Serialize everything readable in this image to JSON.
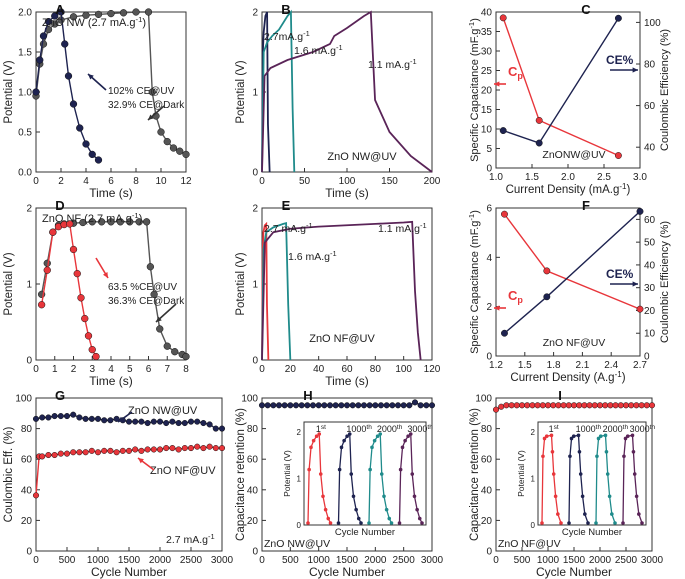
{
  "colors": {
    "red": "#e8363b",
    "navy": "#1e2350",
    "grey": "#555555",
    "teal": "#1f8b8b",
    "purple": "#5a2458"
  },
  "chart_data": [
    {
      "id": "A",
      "type": "line",
      "xlabel": "Time (s)",
      "ylabel": "Potential (V)",
      "xlim": [
        0,
        12
      ],
      "ylim": [
        0,
        2
      ],
      "xticks": [
        "0",
        "2",
        "4",
        "6",
        "8",
        "10",
        "12"
      ],
      "yticks": [
        "0.0",
        "0.5",
        "1.0",
        "1.5",
        "2.0"
      ],
      "label": "ZnO NW (2.7 mA.g",
      "label_sup": "-1",
      "label_end": ")",
      "annotations": [
        "102% CE@UV",
        "32.9% CE@Dark"
      ],
      "series": [
        {
          "name": "Dark",
          "color": "#555555",
          "x": [
            0,
            0.3,
            0.6,
            1,
            1.5,
            2,
            3,
            4,
            5,
            6,
            7,
            8,
            9,
            9.3,
            9.6,
            10,
            10.5,
            11,
            11.5,
            12
          ],
          "y": [
            0.95,
            1.35,
            1.6,
            1.78,
            1.85,
            1.9,
            1.94,
            1.96,
            1.97,
            1.98,
            1.99,
            2.0,
            2.0,
            1.0,
            0.7,
            0.5,
            0.38,
            0.3,
            0.26,
            0.22
          ]
        },
        {
          "name": "UV",
          "color": "#1e2350",
          "x": [
            0,
            0.3,
            0.6,
            1,
            1.5,
            2,
            2.3,
            2.6,
            3,
            3.5,
            4,
            4.5,
            5
          ],
          "y": [
            1.0,
            1.4,
            1.7,
            1.88,
            1.95,
            2.0,
            1.6,
            1.2,
            0.85,
            0.55,
            0.35,
            0.22,
            0.15
          ]
        }
      ]
    },
    {
      "id": "B",
      "type": "line",
      "xlabel": "Time (s)",
      "ylabel": "Potential (V)",
      "xlim": [
        0,
        200
      ],
      "ylim": [
        0,
        2
      ],
      "xticks": [
        "0",
        "50",
        "100",
        "150",
        "200"
      ],
      "yticks": [
        "0",
        "1",
        "2"
      ],
      "label": "ZnO NW@UV",
      "rates": [
        "2.7mA.g",
        "1.6 mA.g",
        "1.1 mA.g"
      ],
      "rate_sup": "-1",
      "series": [
        {
          "name": "2.7 mA.g-1",
          "color": "#1e2350",
          "x": [
            0,
            1,
            2,
            4,
            6,
            7,
            9
          ],
          "y": [
            0,
            1.5,
            1.75,
            1.95,
            2.0,
            0.6,
            0
          ]
        },
        {
          "name": "1.6 mA.g-1",
          "color": "#1f8b8b",
          "x": [
            0,
            2,
            6,
            12,
            20,
            30,
            34,
            36,
            38
          ],
          "y": [
            0,
            1.5,
            1.62,
            1.7,
            1.78,
            1.95,
            2.0,
            0.8,
            0
          ]
        },
        {
          "name": "1.1 mA.g-1",
          "color": "#5a2458",
          "x": [
            0,
            3,
            10,
            30,
            60,
            80,
            85,
            100,
            120,
            128,
            133,
            150,
            175,
            200
          ],
          "y": [
            0,
            1.2,
            1.3,
            1.4,
            1.5,
            1.6,
            1.7,
            1.8,
            1.95,
            2.0,
            0.9,
            0.5,
            0.2,
            0
          ]
        }
      ]
    },
    {
      "id": "C",
      "type": "line",
      "xlabel": "Current Density (mA.g",
      "xlabel_sup": "-1",
      "xlabel_end": ")",
      "ylabel": "Specific Capacitance (mF.g",
      "ylabel_sup": "-1",
      "ylabel_end": ")",
      "y2label": "Coulombic Efficiency (%)",
      "xlim": [
        1.0,
        3.0
      ],
      "ylim": [
        0,
        40
      ],
      "y2lim": [
        30,
        105
      ],
      "xticks": [
        "1.0",
        "1.5",
        "2.0",
        "2.5",
        "3.0"
      ],
      "yticks": [
        "0",
        "5",
        "10",
        "15",
        "20",
        "25",
        "30",
        "35",
        "40"
      ],
      "y2ticks": [
        "40",
        "60",
        "80",
        "100"
      ],
      "label": "ZnONW@UV",
      "legend_left": "C",
      "legend_left_sub": "p",
      "legend_right": "CE%",
      "series": [
        {
          "name": "Cp",
          "axis": "left",
          "color": "#e8363b",
          "x": [
            1.1,
            1.6,
            2.7
          ],
          "y": [
            38.5,
            12.2,
            3.2
          ]
        },
        {
          "name": "CE%",
          "axis": "right",
          "color": "#1e2350",
          "x": [
            1.1,
            1.6,
            2.7
          ],
          "y": [
            48,
            42,
            102
          ]
        }
      ]
    },
    {
      "id": "D",
      "type": "line",
      "xlabel": "Time (s)",
      "ylabel": "Potential (V)",
      "xlim": [
        0,
        8
      ],
      "ylim": [
        0,
        2.2
      ],
      "xticks": [
        "0",
        "1",
        "2",
        "3",
        "4",
        "5",
        "6",
        "7",
        "8"
      ],
      "yticks": [
        "0",
        "1",
        "2"
      ],
      "label": "ZnO NF (2.7 mA.g",
      "label_sup": "-1",
      "label_end": ")",
      "annotations": [
        "63.5 %CE@UV",
        "36.3% CE@Dark"
      ],
      "series": [
        {
          "name": "Dark",
          "color": "#555555",
          "x": [
            0.3,
            0.6,
            0.9,
            1.2,
            1.5,
            2,
            2.5,
            3,
            3.5,
            4,
            4.5,
            5,
            5.5,
            5.9,
            6.1,
            6.3,
            6.6,
            7,
            7.4,
            7.8,
            8
          ],
          "y": [
            0.95,
            1.4,
            1.85,
            1.95,
            1.97,
            1.98,
            1.99,
            2.0,
            2.0,
            2.0,
            2.0,
            2.0,
            2.0,
            2.0,
            1.35,
            0.95,
            0.45,
            0.2,
            0.12,
            0.08,
            0.05
          ]
        },
        {
          "name": "UV",
          "color": "#e8363b",
          "x": [
            0.3,
            0.6,
            0.9,
            1.2,
            1.5,
            1.8,
            2.0,
            2.2,
            2.4,
            2.6,
            2.8,
            3.0,
            3.2
          ],
          "y": [
            0.8,
            1.3,
            1.85,
            1.93,
            1.96,
            1.97,
            1.6,
            1.25,
            0.9,
            0.6,
            0.35,
            0.15,
            0.05
          ]
        }
      ]
    },
    {
      "id": "E",
      "type": "line",
      "xlabel": "Time (s)",
      "ylabel": "Potential (V)",
      "xlim": [
        0,
        120
      ],
      "ylim": [
        0,
        2.2
      ],
      "xticks": [
        "0",
        "20",
        "40",
        "60",
        "80",
        "100",
        "120"
      ],
      "yticks": [
        "0",
        "1",
        "2"
      ],
      "label": "ZnO NF@UV",
      "rates": [
        "2.7 mA.g",
        "1.6 mA.g",
        "1.1 mA.g"
      ],
      "rate_sup": "-1",
      "series": [
        {
          "name": "2.7 mA.g-1",
          "color": "#e8363b",
          "x": [
            0,
            0.5,
            1,
            2,
            3,
            3.5,
            4.5
          ],
          "y": [
            0,
            1.6,
            1.85,
            1.95,
            1.97,
            0.8,
            0
          ]
        },
        {
          "name": "1.6 mA.g-1",
          "color": "#1f8b8b",
          "x": [
            0,
            1,
            3,
            8,
            15,
            17,
            18.5,
            20
          ],
          "y": [
            0,
            1.6,
            1.85,
            1.92,
            1.97,
            1.98,
            0.8,
            0
          ]
        },
        {
          "name": "1.1 mA.g-1",
          "color": "#5a2458",
          "x": [
            0,
            2,
            8,
            20,
            40,
            60,
            80,
            100,
            106,
            108,
            110,
            112
          ],
          "y": [
            0,
            1.7,
            1.85,
            1.9,
            1.93,
            1.95,
            1.97,
            1.99,
            2.0,
            1.0,
            0.4,
            0
          ]
        }
      ]
    },
    {
      "id": "F",
      "type": "line",
      "xlabel": "Current Density (A.g",
      "xlabel_sup": "-1",
      "xlabel_end": ")",
      "ylabel": "Specific Capacitance (mF.g",
      "ylabel_sup": "-1",
      "ylabel_end": ")",
      "y2label": "Coulombic Efficiency (%)",
      "xlim": [
        1.0,
        2.7
      ],
      "ylim": [
        0,
        6
      ],
      "y2lim": [
        0,
        65
      ],
      "xticks": [
        "1.2",
        "1.5",
        "1.8",
        "2.1",
        "2.4",
        "2.7"
      ],
      "yticks": [
        "0",
        "2",
        "4",
        "6"
      ],
      "y2ticks": [
        "0",
        "10",
        "20",
        "30",
        "40",
        "50",
        "60"
      ],
      "label": "ZnO NF@UV",
      "legend_left": "C",
      "legend_left_sub": "p",
      "legend_right": "CE%",
      "series": [
        {
          "name": "Cp",
          "axis": "left",
          "color": "#e8363b",
          "x": [
            1.1,
            1.6,
            2.7
          ],
          "y": [
            5.75,
            3.45,
            1.9
          ]
        },
        {
          "name": "CE%",
          "axis": "right",
          "color": "#1e2350",
          "x": [
            1.1,
            1.6,
            2.7
          ],
          "y": [
            10,
            26,
            63.5
          ]
        }
      ]
    },
    {
      "id": "G",
      "type": "line",
      "xlabel": "Cycle Number",
      "ylabel": "Coulombic Eff. (%)",
      "xlim": [
        0,
        3000
      ],
      "ylim": [
        0,
        110
      ],
      "xticks": [
        "0",
        "500",
        "1000",
        "1500",
        "2000",
        "2500",
        "3000"
      ],
      "yticks": [
        "0",
        "20",
        "40",
        "60",
        "80",
        "100"
      ],
      "annotations": [
        "ZnO NW@UV",
        "ZnO NF@UV",
        "2.7 mA.g"
      ],
      "rate_sup": "-1",
      "series": [
        {
          "name": "ZnO NW@UV",
          "color": "#1e2350",
          "x": [
            0,
            100,
            200,
            300,
            400,
            500,
            600,
            700,
            800,
            900,
            1000,
            1100,
            1200,
            1300,
            1400,
            1500,
            1600,
            1700,
            1800,
            1900,
            2000,
            2100,
            2200,
            2300,
            2400,
            2500,
            2600,
            2700,
            2800,
            2900,
            3000
          ],
          "y": [
            95,
            96,
            96,
            97,
            97,
            97,
            98,
            96,
            95,
            95,
            95,
            94,
            94,
            95,
            94,
            93,
            93,
            93,
            92,
            93,
            93,
            92,
            93,
            92,
            92,
            93,
            93,
            92,
            91,
            88,
            88
          ]
        },
        {
          "name": "ZnO NF@UV",
          "color": "#e8363b",
          "x": [
            0,
            50,
            100,
            200,
            300,
            400,
            500,
            600,
            700,
            800,
            900,
            1000,
            1100,
            1200,
            1300,
            1400,
            1500,
            1600,
            1700,
            1800,
            1900,
            2000,
            2100,
            2200,
            2300,
            2400,
            2500,
            2600,
            2700,
            2800,
            2900,
            3000
          ],
          "y": [
            40,
            68,
            68,
            69,
            69,
            70,
            70,
            71,
            71,
            71,
            72,
            71,
            72,
            72,
            71,
            72,
            72,
            73,
            72,
            73,
            73,
            73,
            74,
            74,
            73,
            74,
            74,
            75,
            74,
            75,
            74,
            74
          ]
        }
      ]
    },
    {
      "id": "H",
      "type": "line",
      "xlabel": "Cycle Number",
      "ylabel": "Capacitance retention (%)",
      "xlim": [
        0,
        3000
      ],
      "ylim": [
        0,
        105
      ],
      "xticks": [
        "0",
        "500",
        "1000",
        "1500",
        "2000",
        "2500",
        "3000"
      ],
      "yticks": [
        "0",
        "20",
        "40",
        "60",
        "80",
        "100"
      ],
      "label": "ZnO NW@UV",
      "series": [
        {
          "name": "retention",
          "color": "#1e2350",
          "x": [
            0,
            100,
            200,
            300,
            400,
            500,
            600,
            700,
            800,
            900,
            1000,
            1100,
            1200,
            1300,
            1400,
            1500,
            1600,
            1700,
            1800,
            1900,
            2000,
            2100,
            2200,
            2300,
            2400,
            2500,
            2600,
            2700,
            2800,
            2900,
            3000
          ],
          "y": [
            100,
            100,
            100,
            100,
            100,
            100,
            100,
            100,
            100,
            100,
            100,
            100,
            100,
            100,
            100,
            100,
            100,
            100,
            100,
            100,
            100,
            100,
            100,
            100,
            100,
            100,
            100,
            102,
            100,
            100,
            100
          ]
        }
      ],
      "inset": {
        "xlabel": "Cycle Number",
        "ylabel": "Potential (V)",
        "ylim": [
          0,
          2
        ],
        "yticks": [
          "0",
          "1",
          "2"
        ],
        "cycles": [
          {
            "label": "1",
            "sup": "st",
            "color": "#e8363b"
          },
          {
            "label": "1000",
            "sup": "th",
            "color": "#1e2350"
          },
          {
            "label": "2000",
            "sup": "th",
            "color": "#1f8b8b"
          },
          {
            "label": "3000",
            "sup": "th",
            "color": "#5a2458"
          }
        ],
        "cycle_shape": {
          "x": [
            0,
            0.3,
            0.8,
            1.5,
            2.3,
            3,
            3.4,
            4,
            4.7,
            5.4,
            6
          ],
          "y": [
            0,
            1.2,
            1.7,
            1.85,
            1.95,
            2.0,
            1.1,
            0.6,
            0.3,
            0.1,
            0
          ]
        }
      }
    },
    {
      "id": "I",
      "type": "line",
      "xlabel": "Cycle Number",
      "ylabel": "Capacitance retention (%)",
      "xlim": [
        0,
        3000
      ],
      "ylim": [
        0,
        105
      ],
      "xticks": [
        "0",
        "500",
        "1000",
        "1500",
        "2000",
        "2500",
        "3000"
      ],
      "yticks": [
        "0",
        "20",
        "40",
        "60",
        "80",
        "100"
      ],
      "label": "ZnO NF@UV",
      "series": [
        {
          "name": "retention",
          "color": "#e8363b",
          "x": [
            0,
            100,
            200,
            300,
            400,
            500,
            600,
            700,
            800,
            900,
            1000,
            1100,
            1200,
            1300,
            1400,
            1500,
            1600,
            1700,
            1800,
            1900,
            2000,
            2100,
            2200,
            2300,
            2400,
            2500,
            2600,
            2700,
            2800,
            2900,
            3000
          ],
          "y": [
            97,
            99,
            100,
            100,
            100,
            100,
            100,
            100,
            100,
            100,
            100,
            100,
            100,
            100,
            100,
            100,
            100,
            100,
            100,
            100,
            100,
            100,
            100,
            100,
            100,
            100,
            100,
            100,
            100,
            100,
            100
          ]
        }
      ],
      "inset": {
        "xlabel": "Cycle Number",
        "ylabel": "Potential (V)",
        "ylim": [
          0,
          2
        ],
        "yticks": [
          "0",
          "1",
          "2"
        ],
        "cycles": [
          {
            "label": "1",
            "sup": "st",
            "color": "#e8363b"
          },
          {
            "label": "1000",
            "sup": "th",
            "color": "#1e2350"
          },
          {
            "label": "2000",
            "sup": "th",
            "color": "#1f8b8b"
          },
          {
            "label": "3000",
            "sup": "th",
            "color": "#5a2458"
          }
        ],
        "cycle_shape": {
          "x": [
            0,
            0.3,
            0.8,
            1.5,
            3,
            3.3,
            3.7,
            4.3,
            5,
            6
          ],
          "y": [
            0,
            1.5,
            1.9,
            1.95,
            1.97,
            1.6,
            1.1,
            0.6,
            0.2,
            0
          ]
        }
      }
    }
  ]
}
